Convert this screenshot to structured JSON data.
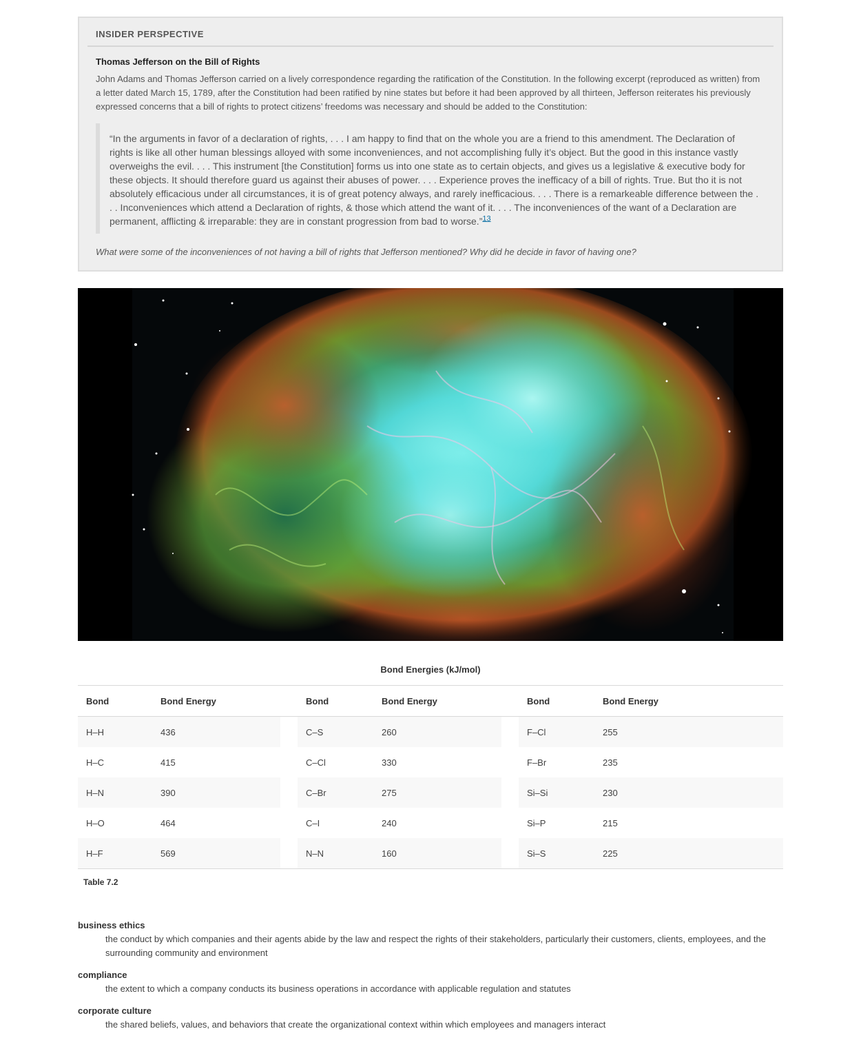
{
  "feature": {
    "header": "INSIDER PERSPECTIVE",
    "title": "Thomas Jefferson on the Bill of Rights",
    "intro": "John Adams and Thomas Jefferson carried on a lively correspondence regarding the ratification of the Constitution. In the following excerpt (reproduced as written) from a letter dated March 15, 1789, after the Constitution had been ratified by nine states but before it had been approved by all thirteen, Jefferson reiterates his previously expressed concerns that a bill of rights to protect citizens’ freedoms was necessary and should be added to the Constitution:",
    "quote": "“In the arguments in favor of a declaration of rights, . . . I am happy to find that on the whole you are a friend to this amendment. The Declaration of rights is like all other human blessings alloyed with some inconveniences, and not accomplishing fully it’s object. But the good in this instance vastly overweighs the evil. . . . This instrument [the Constitution] forms us into one state as to certain objects, and gives us a legislative & executive body for these objects. It should therefore guard us against their abuses of power. . . . Experience proves the inefficacy of a bill of rights. True. But tho it is not absolutely efficacious under all circumstances, it is of great potency always, and rarely inefficacious. . . . There is a remarkeable difference between the . . . Inconveniences which attend a Declaration of rights, & those which attend the want of it. . . . The inconveniences of the want of a Declaration are permanent, afflicting & irreparable: they are in constant progression from bad to worse.”",
    "footnote": "13",
    "question": "What were some of the inconveniences of not having a bill of rights that Jefferson mentioned? Why did he decide in favor of having one?"
  },
  "table": {
    "title": "Bond Energies (kJ/mol)",
    "headers": [
      "Bond",
      "Bond Energy",
      "Bond",
      "Bond Energy",
      "Bond",
      "Bond Energy"
    ],
    "rows": [
      [
        "H–H",
        "436",
        "C–S",
        "260",
        "F–Cl",
        "255"
      ],
      [
        "H–C",
        "415",
        "C–Cl",
        "330",
        "F–Br",
        "235"
      ],
      [
        "H–N",
        "390",
        "C–Br",
        "275",
        "Si–Si",
        "230"
      ],
      [
        "H–O",
        "464",
        "C–I",
        "240",
        "Si–P",
        "215"
      ],
      [
        "H–F",
        "569",
        "N–N",
        "160",
        "Si–S",
        "225"
      ]
    ],
    "label": "Table 7.2"
  },
  "glossary": [
    {
      "term": "business ethics",
      "definition": "the conduct by which companies and their agents abide by the law and respect the rights of their stakeholders, particularly their customers, clients, employees, and the surrounding community and environment"
    },
    {
      "term": "compliance",
      "definition": "the extent to which a company conducts its business operations in accordance with applicable regulation and statutes"
    },
    {
      "term": "corporate culture",
      "definition": "the shared beliefs, values, and behaviors that create the organizational context within which employees and managers interact"
    }
  ]
}
